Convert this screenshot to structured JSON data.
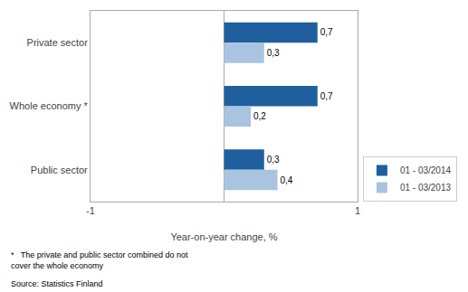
{
  "chart_data": {
    "type": "bar",
    "orientation": "horizontal",
    "categories": [
      "Public sector",
      "Whole economy *",
      "Private sector"
    ],
    "series": [
      {
        "name": "01 - 03/2014",
        "color": "#1F5F9E",
        "values": [
          0.3,
          0.7,
          0.7
        ],
        "value_labels": [
          "0,3",
          "0,7",
          "0,7"
        ]
      },
      {
        "name": "01 - 03/2013",
        "color": "#A8C4E0",
        "values": [
          0.4,
          0.2,
          0.3
        ],
        "value_labels": [
          "0,4",
          "0,2",
          "0,3"
        ]
      }
    ],
    "xlabel": "Year-on-year change, %",
    "xlim": [
      -1,
      1
    ],
    "xticks": [
      -1,
      1
    ],
    "data_labels": true,
    "grid": false,
    "legend": "lower right",
    "annotations": [
      "*   The private and public sector combined do not\ncover the whole economy",
      "Source: Statistics Finland"
    ]
  }
}
